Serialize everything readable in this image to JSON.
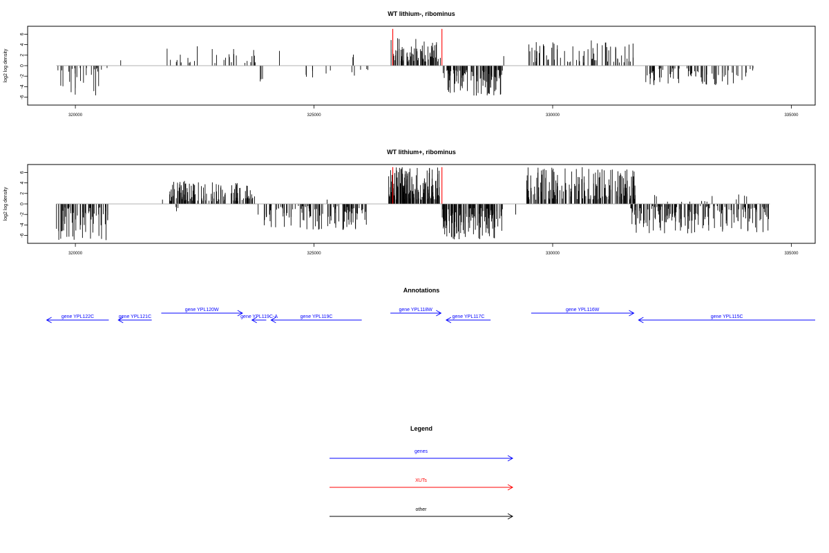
{
  "chart_data": [
    {
      "type": "bar",
      "title": "WT lithium-, ribominus",
      "xlabel": "",
      "ylabel": "log2 log density",
      "xlim": [
        319000,
        335500
      ],
      "ylim": [
        -7.5,
        7.5
      ],
      "xticks": [
        320000,
        325000,
        330000,
        335000
      ],
      "xtick_labels": [
        "320000",
        "325000",
        "330000",
        "335000"
      ],
      "yticks": [
        6,
        4,
        2,
        0,
        -2,
        -4,
        -6
      ],
      "ytick_labels": [
        "6",
        "4",
        "2",
        "0",
        "-2",
        "-4",
        "-6"
      ],
      "grid": false,
      "colors": {
        "bars": "#000000",
        "highlight": "#ff0000"
      },
      "highlights": [
        {
          "x": 326650,
          "y": 7.0
        },
        {
          "x": 327680,
          "y": 7.0
        }
      ],
      "segments": [
        {
          "start": 319600,
          "end": 320700,
          "sign": -1,
          "n": 28,
          "minAbs": 0.4,
          "maxAbs": 6.2,
          "seed": 11
        },
        {
          "start": 320900,
          "end": 321000,
          "sign": 1,
          "n": 1,
          "minAbs": 1.0,
          "maxAbs": 1.2,
          "seed": 12
        },
        {
          "start": 321900,
          "end": 323800,
          "sign": 1,
          "n": 30,
          "minAbs": 0.5,
          "maxAbs": 3.9,
          "seed": 13
        },
        {
          "start": 323850,
          "end": 323950,
          "sign": -1,
          "n": 3,
          "minAbs": 2.5,
          "maxAbs": 3.8,
          "seed": 14
        },
        {
          "start": 324250,
          "end": 324300,
          "sign": 1,
          "n": 1,
          "minAbs": 2.8,
          "maxAbs": 3.0,
          "seed": 15
        },
        {
          "start": 324800,
          "end": 325500,
          "sign": -1,
          "n": 7,
          "minAbs": 0.6,
          "maxAbs": 3.3,
          "seed": 16
        },
        {
          "start": 325700,
          "end": 326300,
          "sign": -1,
          "n": 5,
          "minAbs": 0.5,
          "maxAbs": 2.4,
          "seed": 17
        },
        {
          "start": 325800,
          "end": 325900,
          "sign": 1,
          "n": 2,
          "minAbs": 1.5,
          "maxAbs": 2.2,
          "seed": 18
        },
        {
          "start": 326600,
          "end": 327650,
          "sign": 1,
          "n": 75,
          "minAbs": 0.8,
          "maxAbs": 5.3,
          "seed": 19
        },
        {
          "start": 327660,
          "end": 328950,
          "sign": -1,
          "n": 95,
          "minAbs": 0.8,
          "maxAbs": 5.8,
          "seed": 20
        },
        {
          "start": 328950,
          "end": 329000,
          "sign": 1,
          "n": 1,
          "minAbs": 1.8,
          "maxAbs": 2.0,
          "seed": 21
        },
        {
          "start": 329500,
          "end": 331700,
          "sign": 1,
          "n": 70,
          "minAbs": 0.6,
          "maxAbs": 4.9,
          "seed": 22
        },
        {
          "start": 331950,
          "end": 334200,
          "sign": -1,
          "n": 75,
          "minAbs": 0.5,
          "maxAbs": 3.9,
          "seed": 23
        }
      ]
    },
    {
      "type": "bar",
      "title": "WT lithium+, ribominus",
      "xlabel": "",
      "ylabel": "log2 log density",
      "xlim": [
        319000,
        335500
      ],
      "ylim": [
        -7.5,
        7.5
      ],
      "xticks": [
        320000,
        325000,
        330000,
        335000
      ],
      "xtick_labels": [
        "320000",
        "325000",
        "330000",
        "335000"
      ],
      "yticks": [
        6,
        4,
        2,
        0,
        -2,
        -4,
        -6
      ],
      "ytick_labels": [
        "6",
        "4",
        "2",
        "0",
        "-2",
        "-4",
        "-6"
      ],
      "grid": false,
      "colors": {
        "bars": "#000000",
        "highlight": "#ff0000"
      },
      "highlights": [
        {
          "x": 326650,
          "y": 7.0
        },
        {
          "x": 327680,
          "y": 7.0
        }
      ],
      "segments": [
        {
          "start": 319600,
          "end": 320700,
          "sign": -1,
          "n": 70,
          "minAbs": 0.5,
          "maxAbs": 7.0,
          "seed": 31
        },
        {
          "start": 321800,
          "end": 321850,
          "sign": 1,
          "n": 1,
          "minAbs": 0.8,
          "maxAbs": 1.0,
          "seed": 32
        },
        {
          "start": 321950,
          "end": 323800,
          "sign": 1,
          "n": 130,
          "minAbs": 0.5,
          "maxAbs": 4.4,
          "seed": 33
        },
        {
          "start": 322100,
          "end": 322300,
          "sign": -1,
          "n": 3,
          "minAbs": 0.6,
          "maxAbs": 1.5,
          "seed": 34
        },
        {
          "start": 323800,
          "end": 326100,
          "sign": -1,
          "n": 110,
          "minAbs": 0.4,
          "maxAbs": 5.2,
          "seed": 35
        },
        {
          "start": 325250,
          "end": 325300,
          "sign": 1,
          "n": 1,
          "minAbs": 0.8,
          "maxAbs": 1.0,
          "seed": 36
        },
        {
          "start": 326550,
          "end": 327650,
          "sign": 1,
          "n": 140,
          "minAbs": 0.8,
          "maxAbs": 7.0,
          "seed": 37
        },
        {
          "start": 327660,
          "end": 328950,
          "sign": -1,
          "n": 130,
          "minAbs": 0.8,
          "maxAbs": 6.8,
          "seed": 38
        },
        {
          "start": 329200,
          "end": 329250,
          "sign": -1,
          "n": 1,
          "minAbs": 2.0,
          "maxAbs": 2.2,
          "seed": 39
        },
        {
          "start": 329450,
          "end": 331750,
          "sign": 1,
          "n": 170,
          "minAbs": 0.8,
          "maxAbs": 7.0,
          "seed": 40
        },
        {
          "start": 331600,
          "end": 334550,
          "sign": -1,
          "n": 170,
          "minAbs": 0.4,
          "maxAbs": 5.6,
          "seed": 41
        },
        {
          "start": 331800,
          "end": 334200,
          "sign": 1,
          "n": 14,
          "minAbs": 0.4,
          "maxAbs": 1.8,
          "seed": 42
        }
      ]
    }
  ],
  "annotations": {
    "title": "Annotations",
    "color": "#0000ff",
    "genes": [
      {
        "label": "gene YPL122C",
        "start": 319400,
        "end": 320700,
        "strand": "-",
        "row": "low"
      },
      {
        "label": "gene YPL121C",
        "start": 320900,
        "end": 321600,
        "strand": "-",
        "row": "low"
      },
      {
        "label": "gene YPL120W",
        "start": 321800,
        "end": 323500,
        "strand": "+",
        "row": "high"
      },
      {
        "label": "gene YPL119C-A",
        "start": 323700,
        "end": 324000,
        "strand": "-",
        "row": "low"
      },
      {
        "label": "gene YPL119C",
        "start": 324100,
        "end": 326000,
        "strand": "-",
        "row": "low"
      },
      {
        "label": "gene YPL118W",
        "start": 326600,
        "end": 327660,
        "strand": "+",
        "row": "high"
      },
      {
        "label": "gene YPL117C",
        "start": 327770,
        "end": 328700,
        "strand": "-",
        "row": "low"
      },
      {
        "label": "gene YPL116W",
        "start": 329550,
        "end": 331700,
        "strand": "+",
        "row": "high"
      },
      {
        "label": "gene YPL115C",
        "start": 331800,
        "end": 335500,
        "strand": "-",
        "row": "low"
      }
    ]
  },
  "legend": {
    "title": "Legend",
    "items": [
      {
        "label": "genes",
        "color": "#0000ff"
      },
      {
        "label": "XUTs",
        "color": "#ff0000"
      },
      {
        "label": "other",
        "color": "#000000"
      }
    ]
  }
}
